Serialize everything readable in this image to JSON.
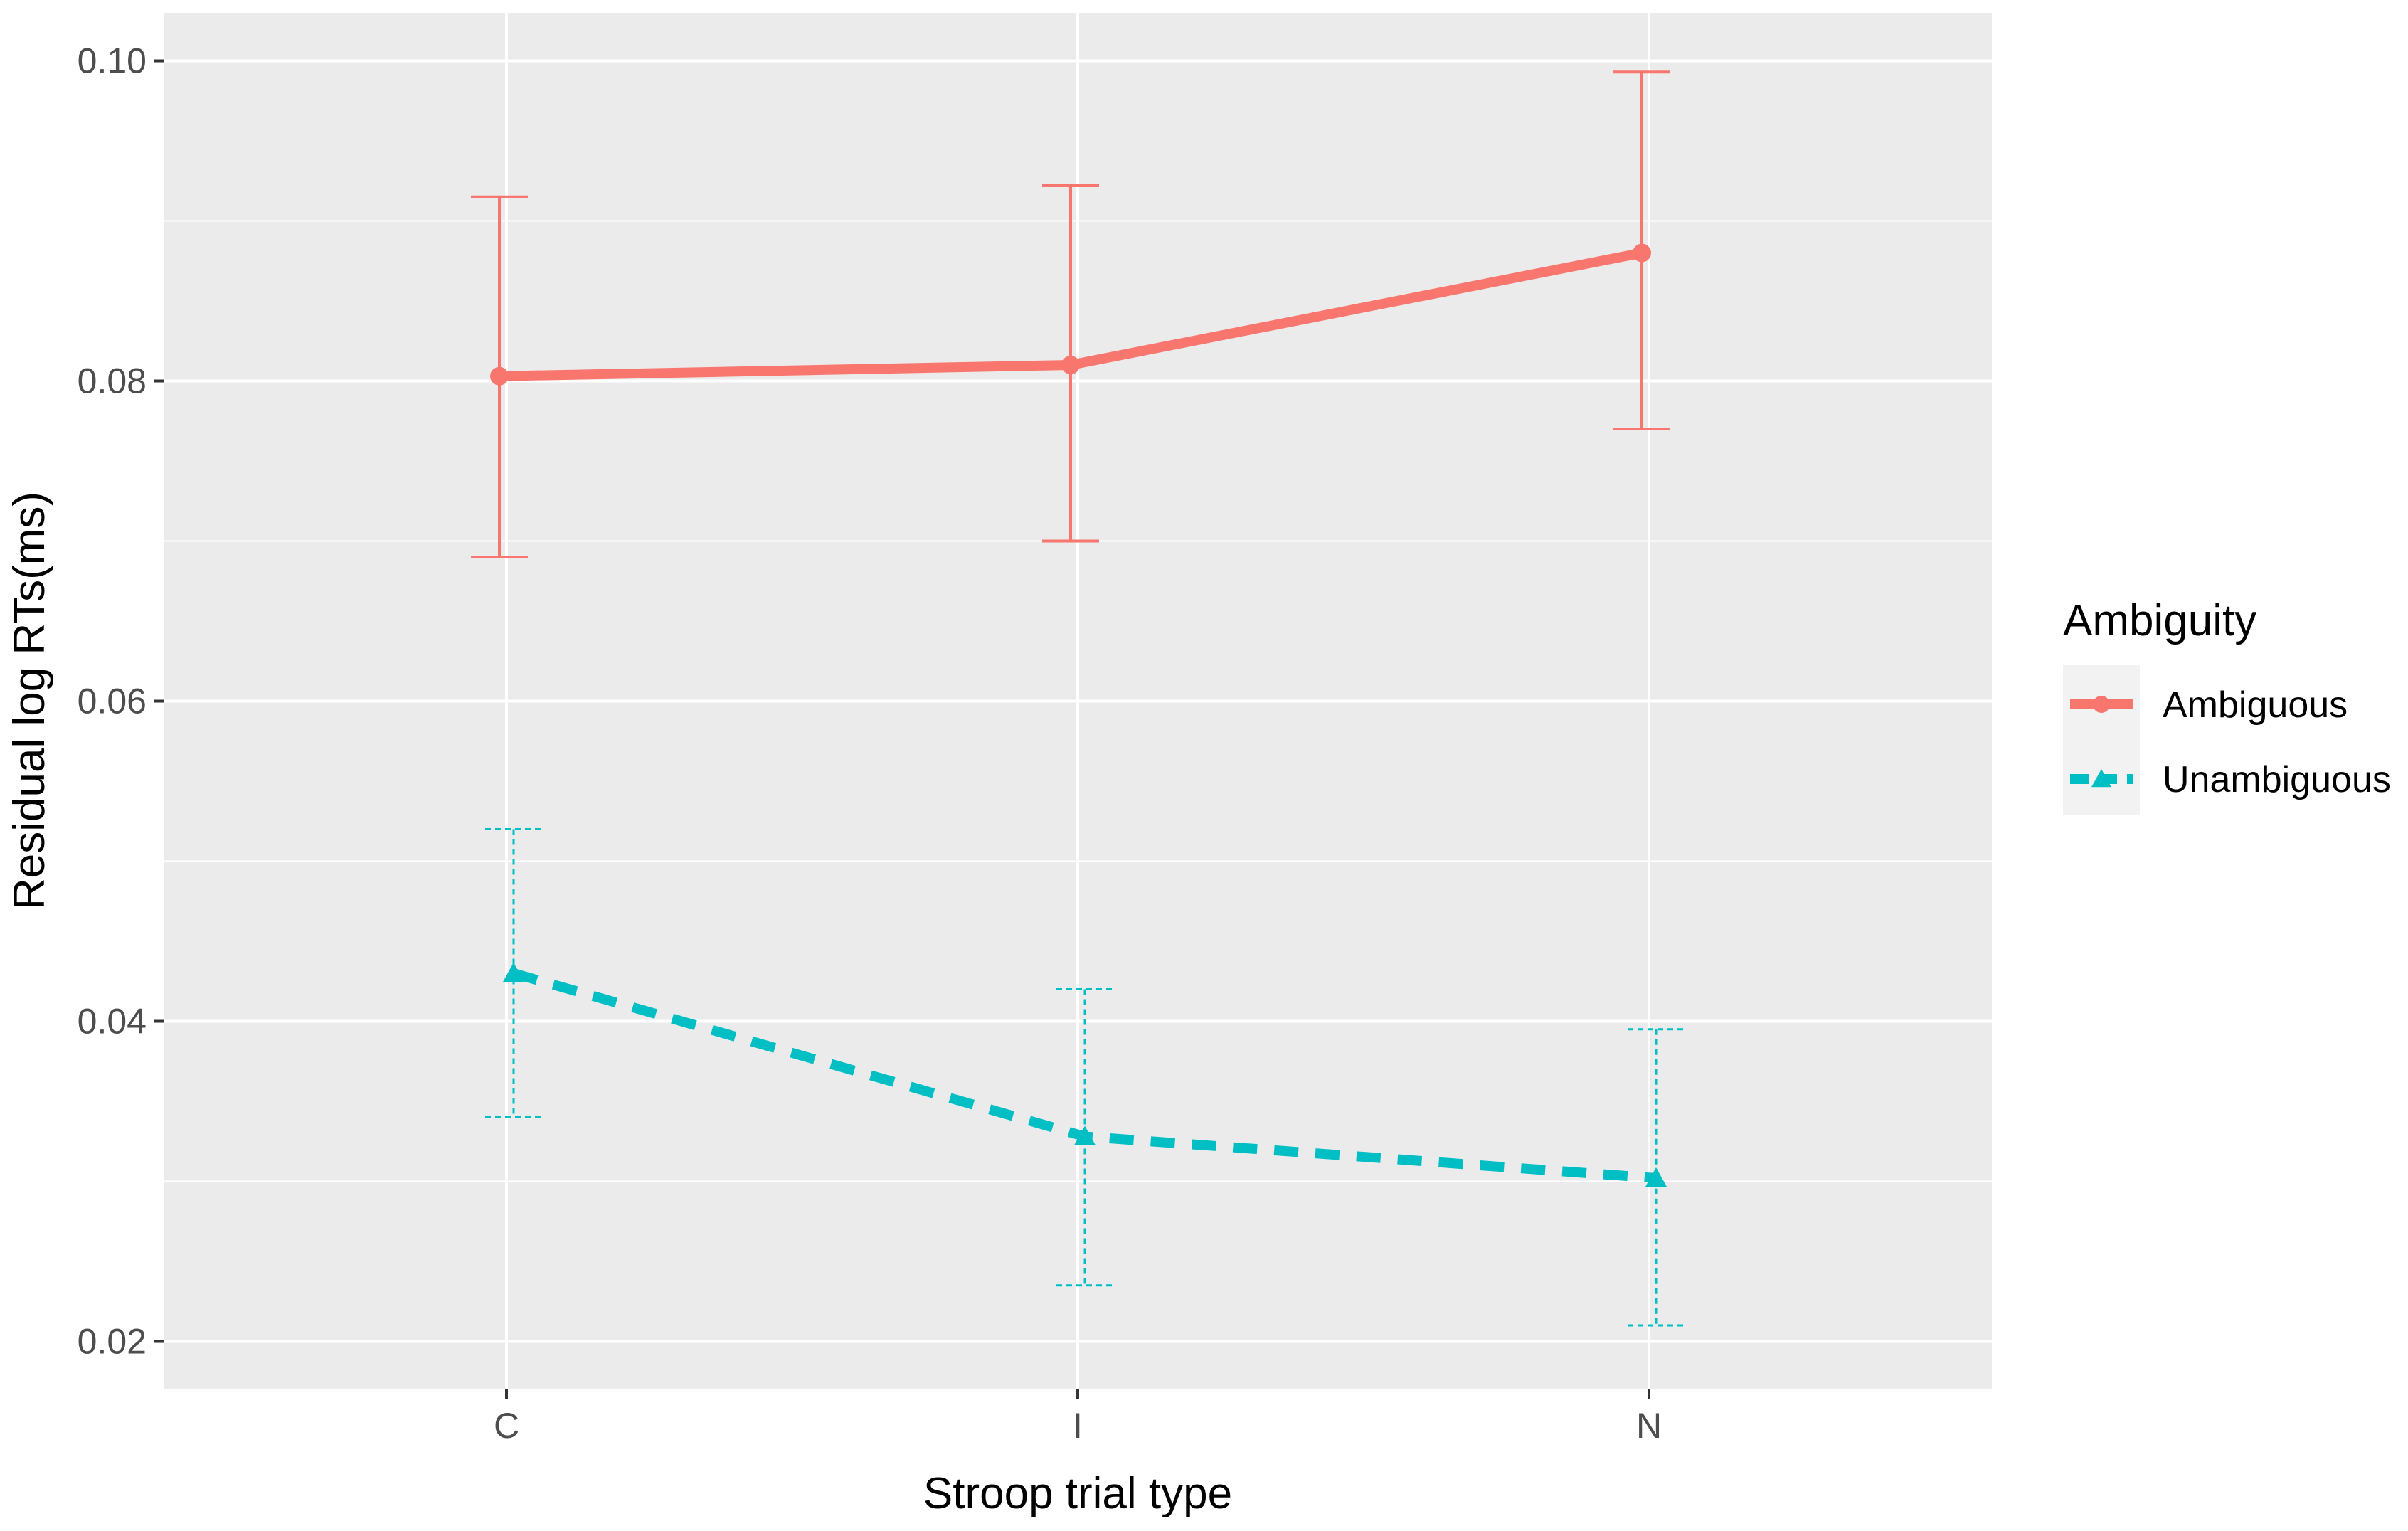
{
  "chart_data": {
    "type": "line",
    "xlabel": "Stroop trial type",
    "ylabel": "Residual log RTs(ms)",
    "categories": [
      "C",
      "I",
      "N"
    ],
    "ylim": [
      0.017,
      0.103
    ],
    "yticks": [
      0.02,
      0.04,
      0.06,
      0.08,
      0.1
    ],
    "ytick_labels": [
      "0.02",
      "0.04",
      "0.06",
      "0.08",
      "0.10"
    ],
    "grid": true,
    "legend": {
      "title": "Ambiguity",
      "position": "right"
    },
    "series": [
      {
        "name": "Ambiguous",
        "color": "#F8766D",
        "line_style": "solid",
        "marker": "circle",
        "values": [
          0.0803,
          0.081,
          0.088
        ],
        "error_low": [
          0.069,
          0.07,
          0.077
        ],
        "error_high": [
          0.0915,
          0.0922,
          0.0993
        ]
      },
      {
        "name": "Unambiguous",
        "color": "#00BFC4",
        "line_style": "dashed",
        "marker": "triangle",
        "values": [
          0.043,
          0.0328,
          0.0302
        ],
        "error_low": [
          0.034,
          0.0235,
          0.021
        ],
        "error_high": [
          0.052,
          0.042,
          0.0395
        ]
      }
    ]
  }
}
